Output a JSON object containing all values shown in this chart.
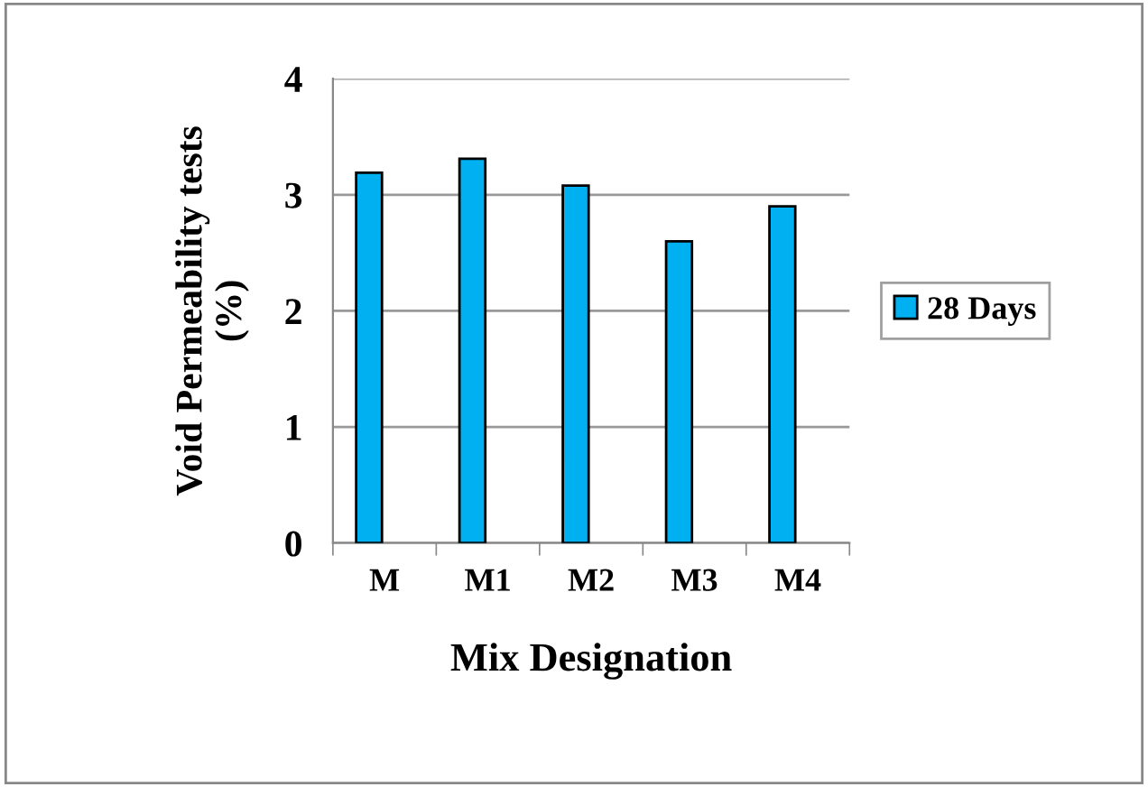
{
  "chart_data": {
    "type": "bar",
    "xlabel": "Mix Designation",
    "ylabel": "Void Permeability tests\n(%)",
    "categories": [
      "M",
      "M1",
      "M2",
      "M3",
      "M4"
    ],
    "series": [
      {
        "name": "28 Days",
        "color": "#00b0f0",
        "values": [
          3.19,
          3.31,
          3.08,
          2.6,
          2.9
        ]
      }
    ],
    "ylim": [
      0,
      4
    ],
    "yticks": [
      0,
      1,
      2,
      3,
      4
    ],
    "grid": "y",
    "legend": "right"
  }
}
